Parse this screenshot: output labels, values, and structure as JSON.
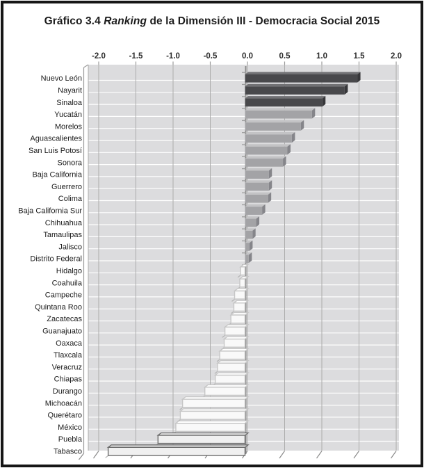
{
  "title": {
    "prefix": "Gráfico 3.4 ",
    "italic": "Ranking",
    "suffix": " de la Dimensión III - Democracia Social 2015"
  },
  "chart_data": {
    "type": "bar",
    "orientation": "horizontal",
    "title": "Gráfico 3.4 Ranking de la Dimensión III - Democracia Social 2015",
    "xlabel": "",
    "ylabel": "",
    "xlim": [
      -2.0,
      2.0
    ],
    "grid": true,
    "legend": "none",
    "xticks": [
      "-2.0",
      "-1.5",
      "-1.0",
      "-0.5",
      "0.0",
      "0.5",
      "1.0",
      "1.5",
      "2.0"
    ],
    "xtick_values": [
      -2.0,
      -1.5,
      -1.0,
      -0.5,
      0.0,
      0.5,
      1.0,
      1.5,
      2.0
    ],
    "categories": [
      "Nuevo León",
      "Nayarit",
      "Sinaloa",
      "Yucatán",
      "Morelos",
      "Aguascalientes",
      "San Luis Potosí",
      "Sonora",
      "Baja California",
      "Guerrero",
      "Colima",
      "Baja California Sur",
      "Chihuahua",
      "Tamaulipas",
      "Jalisco",
      "Distrito Federal",
      "Hidalgo",
      "Coahuila",
      "Campeche",
      "Quintana Roo",
      "Zacatecas",
      "Guanajuato",
      "Oaxaca",
      "Tlaxcala",
      "Veracruz",
      "Chiapas",
      "Durango",
      "Michoacán",
      "Querétaro",
      "México",
      "Puebla",
      "Tabasco"
    ],
    "values": [
      1.51,
      1.34,
      1.04,
      0.9,
      0.75,
      0.63,
      0.57,
      0.51,
      0.32,
      0.32,
      0.31,
      0.23,
      0.15,
      0.1,
      0.06,
      0.05,
      -0.06,
      -0.07,
      -0.14,
      -0.15,
      -0.19,
      -0.27,
      -0.28,
      -0.34,
      -0.37,
      -0.4,
      -0.54,
      -0.84,
      -0.87,
      -0.93,
      -1.17,
      -1.84
    ],
    "bar_styles": [
      "dark",
      "dark",
      "dark",
      "medium",
      "medium",
      "medium",
      "medium",
      "medium",
      "medium",
      "medium",
      "medium",
      "medium",
      "medium",
      "medium",
      "medium",
      "medium",
      "light",
      "light",
      "light",
      "light",
      "light",
      "light",
      "light",
      "light",
      "light",
      "light",
      "light",
      "light",
      "light",
      "light",
      "outlined",
      "outlined"
    ],
    "style_colors": {
      "dark": {
        "face": "#48484b",
        "top": "#717174",
        "cap": "#37373a"
      },
      "medium": {
        "face": "#a3a3a6",
        "top": "#c3c3c5",
        "cap": "#85858a"
      },
      "light": {
        "face": "#f9f9f9",
        "top": "#ffffff",
        "stroke": "#c6c6c6",
        "shadow": true
      },
      "outlined": {
        "face": "#f0f0f0",
        "top": "#e3e3e3",
        "stroke": "#6b6b6b",
        "shadow": true
      }
    },
    "plot_background": "#dcdcde",
    "gridline_color": "#ababab",
    "row_line_color": "#ffffff",
    "axis_color": "#8c8c8c",
    "label_color": "#1a1a1a"
  }
}
